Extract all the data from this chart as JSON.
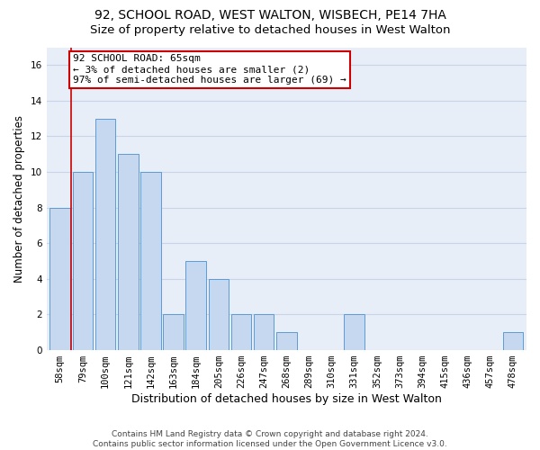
{
  "title": "92, SCHOOL ROAD, WEST WALTON, WISBECH, PE14 7HA",
  "subtitle": "Size of property relative to detached houses in West Walton",
  "xlabel": "Distribution of detached houses by size in West Walton",
  "ylabel": "Number of detached properties",
  "categories": [
    "58sqm",
    "79sqm",
    "100sqm",
    "121sqm",
    "142sqm",
    "163sqm",
    "184sqm",
    "205sqm",
    "226sqm",
    "247sqm",
    "268sqm",
    "289sqm",
    "310sqm",
    "331sqm",
    "352sqm",
    "373sqm",
    "394sqm",
    "415sqm",
    "436sqm",
    "457sqm",
    "478sqm"
  ],
  "values": [
    8,
    10,
    13,
    11,
    10,
    2,
    5,
    4,
    2,
    2,
    1,
    0,
    0,
    2,
    0,
    0,
    0,
    0,
    0,
    0,
    1
  ],
  "bar_color": "#c5d8f0",
  "bar_edge_color": "#5b9bd5",
  "annotation_text_line1": "92 SCHOOL ROAD: 65sqm",
  "annotation_text_line2": "← 3% of detached houses are smaller (2)",
  "annotation_text_line3": "97% of semi-detached houses are larger (69) →",
  "annotation_box_color": "#ffffff",
  "annotation_box_edge_color": "#cc0000",
  "red_line_x": 0.5,
  "ylim": [
    0,
    17
  ],
  "yticks": [
    0,
    2,
    4,
    6,
    8,
    10,
    12,
    14,
    16
  ],
  "grid_color": "#c8d4e8",
  "background_color": "#e8eef8",
  "footer_line1": "Contains HM Land Registry data © Crown copyright and database right 2024.",
  "footer_line2": "Contains public sector information licensed under the Open Government Licence v3.0.",
  "title_fontsize": 10,
  "subtitle_fontsize": 9.5,
  "xlabel_fontsize": 9,
  "ylabel_fontsize": 8.5,
  "tick_fontsize": 7.5,
  "annotation_fontsize": 8,
  "footer_fontsize": 6.5
}
